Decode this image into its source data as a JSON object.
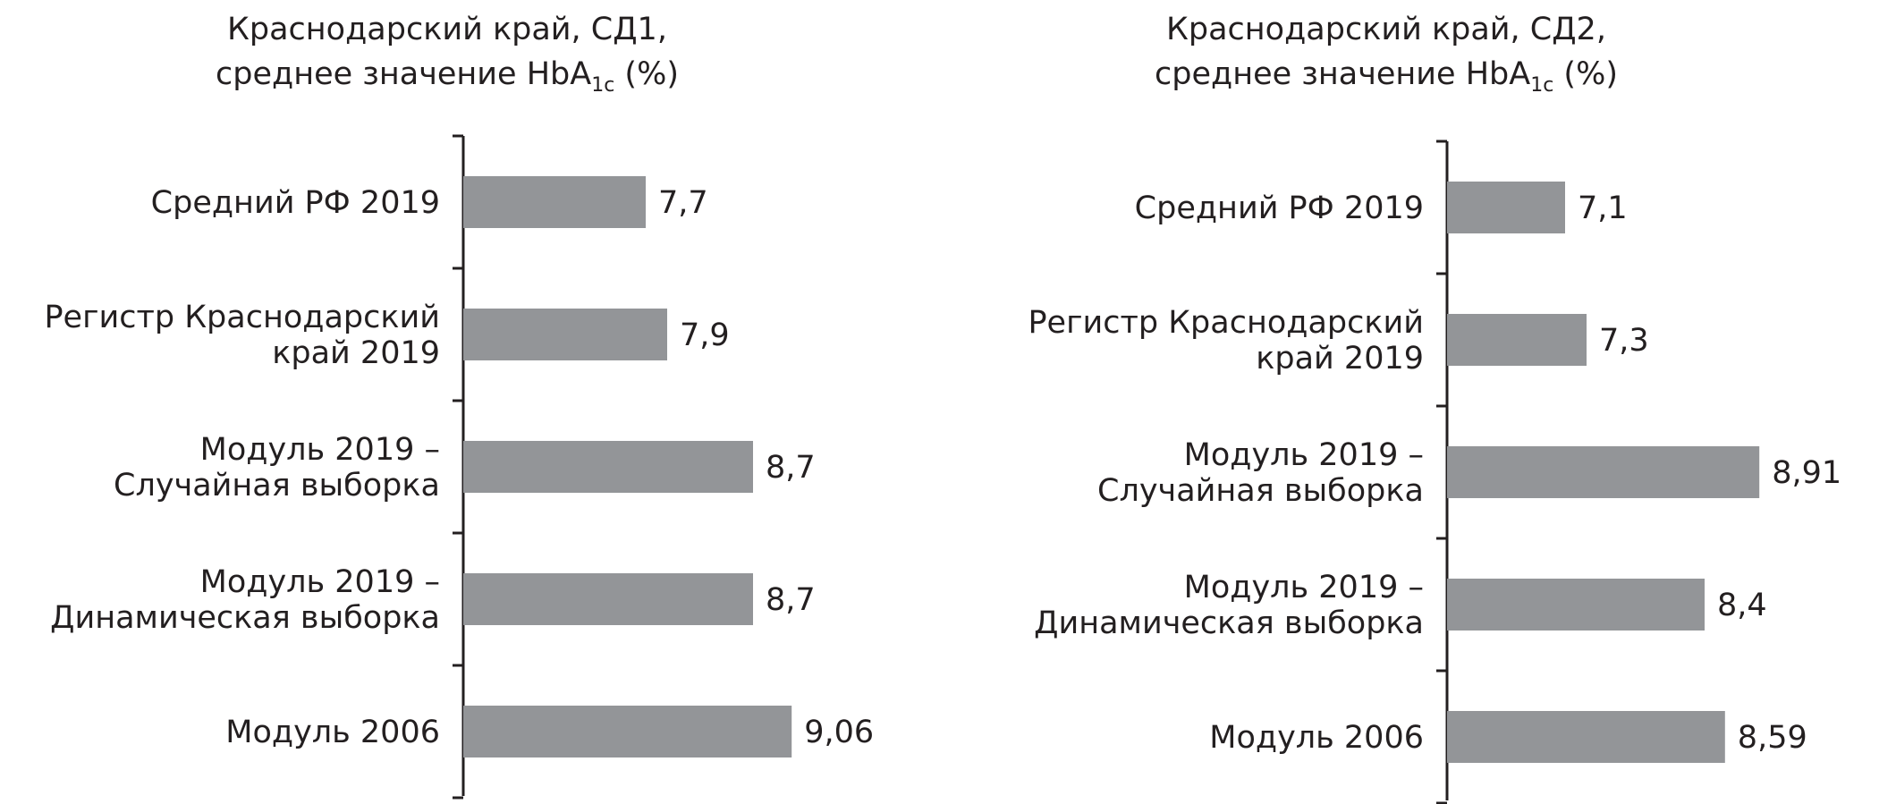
{
  "chart_data": [
    {
      "type": "bar",
      "orientation": "horizontal",
      "title_line1": "Краснодарский край, СД1,",
      "title_line2_pre": "среднее значение HbA",
      "title_sub": "1c",
      "title_post": " (%)",
      "categories": [
        [
          "Средний РФ 2019"
        ],
        [
          "Регистр Краснодарский",
          "край 2019"
        ],
        [
          "Модуль 2019 –",
          "Случайная выборка"
        ],
        [
          "Модуль 2019 –",
          "Динамическая выборка"
        ],
        [
          "Модуль 2006"
        ]
      ],
      "values": [
        7.7,
        7.9,
        8.7,
        8.7,
        9.06
      ],
      "value_labels": [
        "7,7",
        "7,9",
        "8,7",
        "8,7",
        "9,06"
      ],
      "xlim": [
        6,
        10
      ],
      "bar_color": "#939598"
    },
    {
      "type": "bar",
      "orientation": "horizontal",
      "title_line1": "Краснодарский край, СД2,",
      "title_line2_pre": "среднее  значение HbA",
      "title_sub": "1c",
      "title_post": " (%)",
      "categories": [
        [
          "Средний РФ 2019"
        ],
        [
          "Регистр Краснодарский",
          "край 2019"
        ],
        [
          "Модуль 2019 –",
          "Случайная выборка"
        ],
        [
          "Модуль 2019 –",
          "Динамическая выборка"
        ],
        [
          "Модуль 2006"
        ]
      ],
      "values": [
        7.1,
        7.3,
        8.91,
        8.4,
        8.59
      ],
      "value_labels": [
        "7,1",
        "7,3",
        "8,91",
        "8,4",
        "8,59"
      ],
      "xlim": [
        6,
        10
      ],
      "bar_color": "#939598"
    }
  ]
}
